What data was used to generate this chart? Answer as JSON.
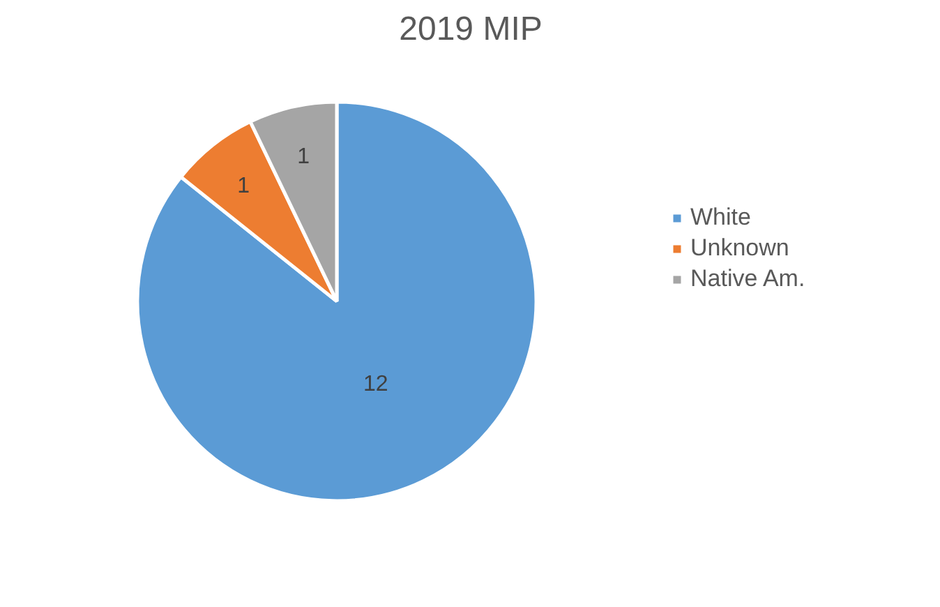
{
  "chart_data": {
    "type": "pie",
    "title": "2019 MIP",
    "categories": [
      "White",
      "Unknown",
      "Native Am."
    ],
    "values": [
      12,
      1,
      1
    ],
    "colors": [
      "#5b9bd5",
      "#ed7d31",
      "#a5a5a5"
    ],
    "data_labels": true,
    "legend": "right"
  }
}
